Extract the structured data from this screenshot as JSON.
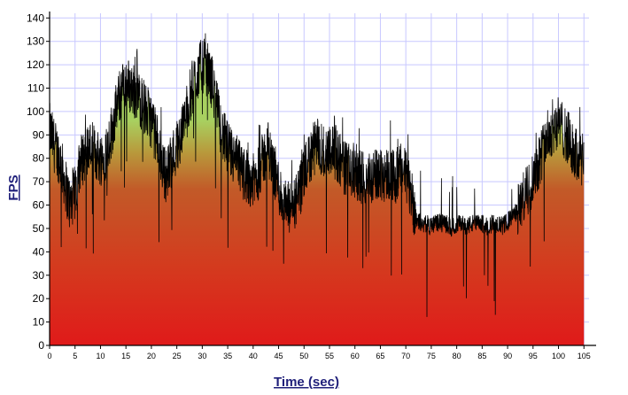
{
  "chart_data": {
    "type": "area",
    "title": "",
    "xlabel": "Time (sec)",
    "ylabel": "FPS",
    "xlim": [
      0,
      106
    ],
    "ylim": [
      0,
      142
    ],
    "x_ticks": [
      0,
      5,
      10,
      15,
      20,
      25,
      30,
      35,
      40,
      45,
      50,
      55,
      60,
      65,
      70,
      75,
      80,
      85,
      90,
      95,
      100,
      105
    ],
    "y_ticks": [
      0,
      10,
      20,
      30,
      40,
      50,
      60,
      70,
      80,
      90,
      100,
      110,
      120,
      130,
      140
    ],
    "grid": true,
    "legend": "none",
    "colors": {
      "line": "#000000",
      "fill_bottom": "#e02020",
      "fill_mid": "#c25a28",
      "fill_top": "#a8d060",
      "grid": "#c8c8ff"
    },
    "series": [
      {
        "x": [
          0,
          1,
          2,
          3,
          4,
          5,
          6,
          7,
          8,
          9,
          10,
          11,
          12,
          13,
          14,
          15,
          16,
          17,
          18,
          19,
          20,
          21,
          22,
          23,
          24,
          25,
          26,
          27,
          28,
          29,
          30,
          31,
          32,
          33,
          34,
          35,
          36,
          37,
          38,
          39,
          40,
          41,
          42,
          43,
          44,
          45,
          46,
          47,
          48,
          49,
          50,
          51,
          52,
          53,
          54,
          55,
          56,
          57,
          58,
          59,
          60,
          61,
          62,
          63,
          64,
          65,
          66,
          67,
          68,
          69,
          70,
          71,
          72,
          73,
          74,
          75,
          76,
          77,
          78,
          79,
          80,
          81,
          82,
          83,
          84,
          85,
          86,
          87,
          88,
          89,
          90,
          91,
          92,
          93,
          94,
          95,
          96,
          97,
          98,
          99,
          100,
          101,
          102,
          103,
          104,
          105
        ],
        "values": [
          92,
          85,
          80,
          70,
          60,
          65,
          78,
          82,
          85,
          82,
          80,
          82,
          90,
          100,
          108,
          112,
          110,
          108,
          104,
          100,
          96,
          88,
          78,
          72,
          80,
          85,
          92,
          100,
          110,
          116,
          120,
          118,
          112,
          100,
          90,
          84,
          80,
          78,
          74,
          72,
          70,
          74,
          80,
          84,
          76,
          68,
          60,
          58,
          60,
          64,
          72,
          80,
          84,
          86,
          82,
          85,
          83,
          80,
          76,
          74,
          75,
          72,
          70,
          72,
          72,
          74,
          73,
          74,
          72,
          75,
          73,
          65,
          55,
          52,
          52,
          51,
          53,
          52,
          52,
          50,
          52,
          52,
          51,
          52,
          52,
          52,
          51,
          52,
          52,
          51,
          53,
          55,
          58,
          62,
          66,
          72,
          78,
          84,
          90,
          94,
          95,
          92,
          88,
          82,
          80,
          78
        ]
      }
    ]
  }
}
